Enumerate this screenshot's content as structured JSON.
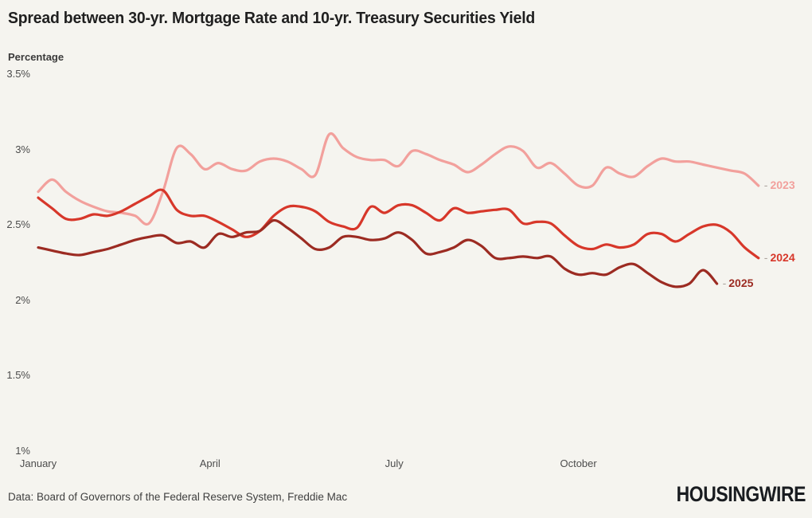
{
  "title": "Spread between 30-yr. Mortgage Rate and 10-yr. Treasury Securities Yield",
  "footer": {
    "source": "Data: Board of Governors of the Federal Reserve System, Freddie Mac",
    "logo": "HOUSINGWIRE"
  },
  "colors": {
    "background": "#f5f4ef",
    "title_text": "#1f1f1f",
    "axis_text": "#4c4c4c",
    "series_2023": "#f2a09c",
    "series_2024": "#d7372a",
    "series_2025": "#9c2b22"
  },
  "chart_data": {
    "type": "line",
    "title": "Spread between 30-yr. Mortgage Rate and 10-yr. Treasury Securities Yield",
    "ylabel": "Percentage",
    "xlabel": "",
    "ylim": [
      1.0,
      3.5
    ],
    "grid": false,
    "legend_position": "end-of-line-labels",
    "x_unit": "week_of_year",
    "y_ticks": [
      {
        "label": "3.5%",
        "value": 3.5
      },
      {
        "label": "3%",
        "value": 3.0
      },
      {
        "label": "2.5%",
        "value": 2.5
      },
      {
        "label": "2%",
        "value": 2.0
      },
      {
        "label": "1.5%",
        "value": 1.5
      },
      {
        "label": "1%",
        "value": 1.0
      }
    ],
    "x_ticks": [
      {
        "label": "January",
        "week": 0
      },
      {
        "label": "April",
        "week": 12.4
      },
      {
        "label": "July",
        "week": 25.7
      },
      {
        "label": "October",
        "week": 39.0
      }
    ],
    "series": [
      {
        "name": "2023",
        "color": "#f2a09c",
        "start_week": 0,
        "values_pct": [
          2.72,
          2.8,
          2.72,
          2.66,
          2.62,
          2.59,
          2.58,
          2.56,
          2.51,
          2.72,
          3.01,
          2.97,
          2.87,
          2.91,
          2.87,
          2.86,
          2.92,
          2.94,
          2.92,
          2.87,
          2.83,
          3.1,
          3.01,
          2.95,
          2.93,
          2.93,
          2.89,
          2.99,
          2.97,
          2.93,
          2.9,
          2.85,
          2.9,
          2.97,
          3.02,
          2.99,
          2.88,
          2.91,
          2.84,
          2.76,
          2.76,
          2.88,
          2.84,
          2.82,
          2.89,
          2.94,
          2.92,
          2.92,
          2.9,
          2.88,
          2.86,
          2.84,
          2.76
        ]
      },
      {
        "name": "2024",
        "color": "#d7372a",
        "start_week": 0,
        "values_pct": [
          2.68,
          2.61,
          2.54,
          2.54,
          2.57,
          2.56,
          2.59,
          2.64,
          2.69,
          2.73,
          2.6,
          2.56,
          2.56,
          2.52,
          2.47,
          2.42,
          2.46,
          2.56,
          2.62,
          2.62,
          2.59,
          2.52,
          2.49,
          2.48,
          2.62,
          2.58,
          2.63,
          2.63,
          2.58,
          2.53,
          2.61,
          2.58,
          2.59,
          2.6,
          2.6,
          2.51,
          2.52,
          2.51,
          2.43,
          2.36,
          2.34,
          2.37,
          2.35,
          2.37,
          2.44,
          2.44,
          2.39,
          2.44,
          2.49,
          2.5,
          2.45,
          2.35,
          2.28
        ]
      },
      {
        "name": "2025",
        "color": "#9c2b22",
        "start_week": 0,
        "values_pct": [
          2.35,
          2.33,
          2.31,
          2.3,
          2.32,
          2.34,
          2.37,
          2.4,
          2.42,
          2.43,
          2.38,
          2.39,
          2.35,
          2.44,
          2.42,
          2.45,
          2.46,
          2.53,
          2.48,
          2.41,
          2.34,
          2.35,
          2.42,
          2.42,
          2.4,
          2.41,
          2.45,
          2.4,
          2.31,
          2.32,
          2.35,
          2.4,
          2.36,
          2.28,
          2.28,
          2.29,
          2.28,
          2.29,
          2.21,
          2.17,
          2.18,
          2.17,
          2.22,
          2.24,
          2.18,
          2.12,
          2.09,
          2.11,
          2.2,
          2.11
        ]
      }
    ]
  }
}
